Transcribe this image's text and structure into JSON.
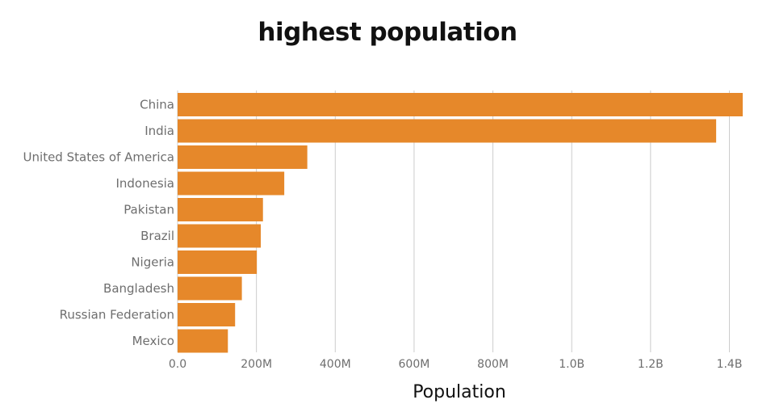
{
  "chart_data": {
    "type": "bar",
    "orientation": "horizontal",
    "title": "highest population",
    "xlabel": "Population",
    "ylabel": "",
    "categories": [
      "China",
      "India",
      "United States of America",
      "Indonesia",
      "Pakistan",
      "Brazil",
      "Nigeria",
      "Bangladesh",
      "Russian Federation",
      "Mexico"
    ],
    "values": [
      1433783686,
      1366417754,
      329064917,
      270625568,
      216565318,
      211049527,
      200963599,
      163046161,
      145872256,
      127575529
    ],
    "xlim": [
      0,
      1433783686
    ],
    "x_ticks": [
      0,
      200000000,
      400000000,
      600000000,
      800000000,
      1000000000,
      1200000000,
      1400000000
    ],
    "x_tick_labels": [
      "0.0",
      "200M",
      "400M",
      "600M",
      "800M",
      "1.0B",
      "1.2B",
      "1.4B"
    ],
    "grid": "vertical",
    "legend": "none",
    "bar_color": "#e6882a",
    "grid_color": "#cccccc"
  }
}
